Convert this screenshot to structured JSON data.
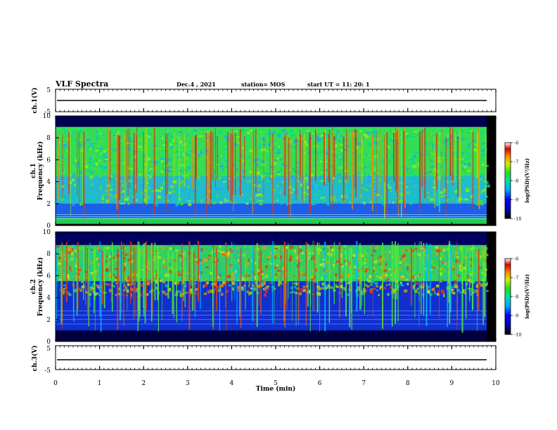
{
  "header": {
    "title": "VLF Spectra",
    "date": "Dec.4 , 2021",
    "station": "station= MOS",
    "start": "start  UT =   11: 20: 1"
  },
  "chart_data": {
    "type": "heatmap",
    "xlabel": "Time  (min)",
    "xlim": [
      0,
      10
    ],
    "x_ticks": [
      "0",
      "1",
      "2",
      "3",
      "4",
      "5",
      "6",
      "7",
      "8",
      "9",
      "10"
    ],
    "panels": [
      {
        "kind": "waveform",
        "ylabel": "ch.1(V)",
        "ylim": [
          -5,
          5
        ],
        "y_ticks": [
          "5",
          "-5"
        ]
      },
      {
        "kind": "spectrogram",
        "ylabel": "ch.1\nFrequency (kHz)",
        "ylim": [
          0,
          10
        ],
        "y_ticks": [
          "0",
          "2",
          "4",
          "6",
          "8",
          "10"
        ],
        "colorbar": {
          "label": "log(PSD)(V²/Hz)",
          "range": [
            -10,
            -6
          ],
          "ticks": [
            "-6",
            "-7",
            "-8",
            "-9",
            "-10"
          ]
        }
      },
      {
        "kind": "spectrogram",
        "ylabel": "ch.2\nFrequency (kHz)",
        "ylim": [
          0,
          10
        ],
        "y_ticks": [
          "0",
          "2",
          "4",
          "6",
          "8",
          "10"
        ],
        "colorbar": {
          "label": "log(PSD)(V²/Hz)",
          "range": [
            -10,
            -6
          ],
          "ticks": [
            "-6",
            "-7",
            "-8",
            "-9",
            "-10"
          ]
        }
      },
      {
        "kind": "waveform",
        "ylabel": "ch.3(V)",
        "ylim": [
          -5,
          5
        ],
        "y_ticks": [
          "5",
          "-5"
        ]
      }
    ],
    "colormap": [
      "#000000",
      "#000080",
      "#0000ff",
      "#00bfff",
      "#00e5a0",
      "#33dd33",
      "#ccee00",
      "#ff8800",
      "#cc0000",
      "#ffffff"
    ]
  }
}
